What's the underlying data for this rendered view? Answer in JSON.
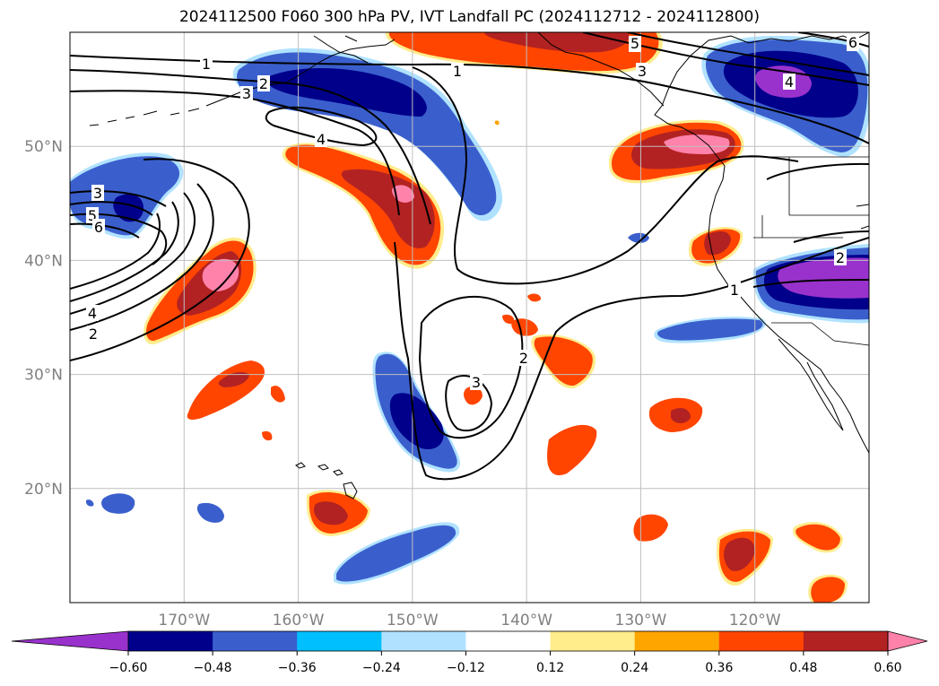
{
  "title": "2024112500 F060 300 hPa PV, IVT Landfall PC (2024112712 - 2024112800)",
  "map": {
    "projection": "PlateCarree",
    "lon_range": [
      -180,
      -110
    ],
    "lat_range": [
      10,
      60
    ],
    "gridlines": true,
    "coastlines": true,
    "lat_ticks": [
      {
        "value": 20,
        "label": "20°N"
      },
      {
        "value": 30,
        "label": "30°N"
      },
      {
        "value": 40,
        "label": "40°N"
      },
      {
        "value": 50,
        "label": "50°N"
      }
    ],
    "lon_ticks": [
      {
        "value": -170,
        "label": "170°W"
      },
      {
        "value": -160,
        "label": "160°W"
      },
      {
        "value": -150,
        "label": "150°W"
      },
      {
        "value": -140,
        "label": "140°W"
      },
      {
        "value": -130,
        "label": "130°W"
      },
      {
        "value": -120,
        "label": "120°W"
      }
    ]
  },
  "colorbar": {
    "orientation": "horizontal",
    "extend": "both",
    "levels": [
      -0.6,
      -0.48,
      -0.36,
      -0.24,
      -0.12,
      0.12,
      0.24,
      0.36,
      0.48,
      0.6
    ],
    "tick_labels": [
      "−0.60",
      "−0.48",
      "−0.36",
      "−0.24",
      "−0.12",
      "0.12",
      "0.24",
      "0.36",
      "0.48",
      "0.60"
    ],
    "colors": [
      "#9932cc",
      "#00008b",
      "#3a5fcd",
      "#00bfff",
      "#b0e2ff",
      "#ffffff",
      "#ffec8b",
      "#ffa500",
      "#ff4500",
      "#b22222",
      "#ff82ab"
    ]
  },
  "contour_labels": [
    "1",
    "2",
    "3",
    "4",
    "5",
    "6"
  ],
  "colors": {
    "negative_strong": "#9932cc",
    "positive_strong": "#ff82ab",
    "contour": "#000000",
    "grid": "#bfbfbf"
  }
}
